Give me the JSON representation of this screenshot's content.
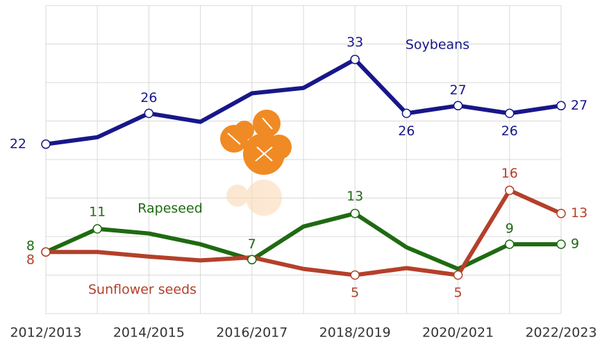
{
  "chart_data": {
    "type": "line",
    "categories": [
      "2012/2013",
      null,
      "2014/2015",
      null,
      "2016/2017",
      null,
      "2018/2019",
      null,
      "2020/2021",
      null,
      "2022/2023"
    ],
    "ylim": [
      0,
      40
    ],
    "yticks": [
      0,
      5,
      10,
      15,
      20,
      25,
      30,
      35,
      40
    ],
    "grid": true,
    "series": [
      {
        "name": "Soybeans",
        "color": "#17178a",
        "values": [
          22,
          22.9,
          26,
          24.9,
          28.6,
          29.3,
          33,
          26,
          27,
          26,
          27
        ],
        "value_labels": [
          "22",
          null,
          "26",
          null,
          null,
          null,
          "33",
          "26",
          "27",
          "26",
          "27"
        ]
      },
      {
        "name": "Rapeseed",
        "color": "#1f6a12",
        "values": [
          8,
          11,
          10.4,
          9,
          7,
          11.3,
          13,
          8.6,
          5.8,
          9,
          9
        ],
        "value_labels": [
          "8",
          "11",
          null,
          null,
          "7",
          null,
          "13",
          null,
          null,
          "9",
          "9"
        ]
      },
      {
        "name": "Sunflower seeds",
        "color": "#b4402a",
        "values": [
          8,
          8,
          7.4,
          6.9,
          7.3,
          5.8,
          5,
          5.9,
          5,
          16,
          13
        ],
        "value_labels": [
          "8",
          null,
          null,
          null,
          null,
          null,
          "5",
          null,
          "5",
          "16",
          "13"
        ]
      }
    ]
  }
}
